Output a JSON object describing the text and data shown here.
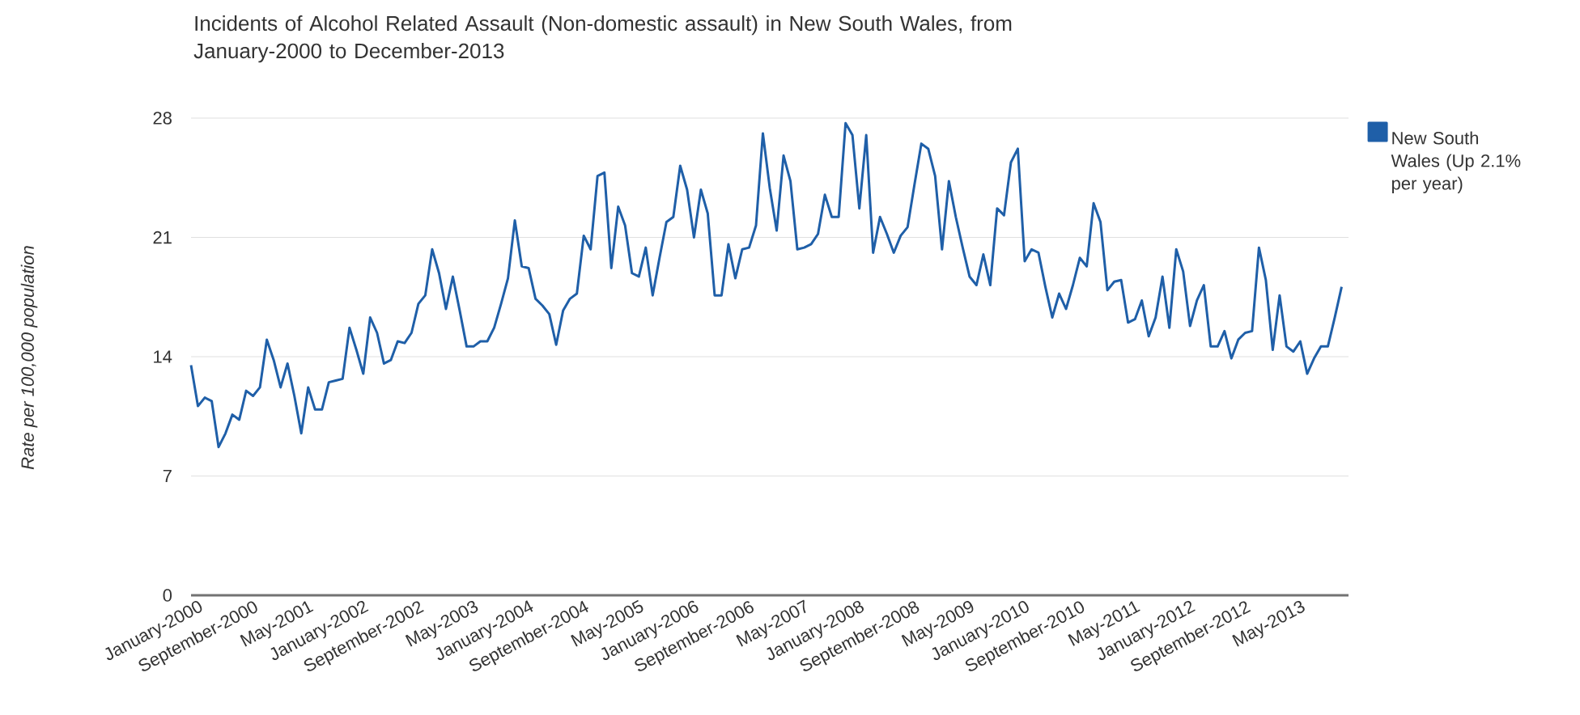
{
  "chart_data": {
    "type": "line",
    "title": "Incidents of Alcohol Related Assault (Non-domestic assault) in New South Wales, from January-2000 to December-2013",
    "ylabel": "Rate per 100,000 population",
    "x": [
      "2000-01",
      "2000-02",
      "2000-03",
      "2000-04",
      "2000-05",
      "2000-06",
      "2000-07",
      "2000-08",
      "2000-09",
      "2000-10",
      "2000-11",
      "2000-12",
      "2001-01",
      "2001-02",
      "2001-03",
      "2001-04",
      "2001-05",
      "2001-06",
      "2001-07",
      "2001-08",
      "2001-09",
      "2001-10",
      "2001-11",
      "2001-12",
      "2002-01",
      "2002-02",
      "2002-03",
      "2002-04",
      "2002-05",
      "2002-06",
      "2002-07",
      "2002-08",
      "2002-09",
      "2002-10",
      "2002-11",
      "2002-12",
      "2003-01",
      "2003-02",
      "2003-03",
      "2003-04",
      "2003-05",
      "2003-06",
      "2003-07",
      "2003-08",
      "2003-09",
      "2003-10",
      "2003-11",
      "2003-12",
      "2004-01",
      "2004-02",
      "2004-03",
      "2004-04",
      "2004-05",
      "2004-06",
      "2004-07",
      "2004-08",
      "2004-09",
      "2004-10",
      "2004-11",
      "2004-12",
      "2005-01",
      "2005-02",
      "2005-03",
      "2005-04",
      "2005-05",
      "2005-06",
      "2005-07",
      "2005-08",
      "2005-09",
      "2005-10",
      "2005-11",
      "2005-12",
      "2006-01",
      "2006-02",
      "2006-03",
      "2006-04",
      "2006-05",
      "2006-06",
      "2006-07",
      "2006-08",
      "2006-09",
      "2006-10",
      "2006-11",
      "2006-12",
      "2007-01",
      "2007-02",
      "2007-03",
      "2007-04",
      "2007-05",
      "2007-06",
      "2007-07",
      "2007-08",
      "2007-09",
      "2007-10",
      "2007-11",
      "2007-12",
      "2008-01",
      "2008-02",
      "2008-03",
      "2008-04",
      "2008-05",
      "2008-06",
      "2008-07",
      "2008-08",
      "2008-09",
      "2008-10",
      "2008-11",
      "2008-12",
      "2009-01",
      "2009-02",
      "2009-03",
      "2009-04",
      "2009-05",
      "2009-06",
      "2009-07",
      "2009-08",
      "2009-09",
      "2009-10",
      "2009-11",
      "2009-12",
      "2010-01",
      "2010-02",
      "2010-03",
      "2010-04",
      "2010-05",
      "2010-06",
      "2010-07",
      "2010-08",
      "2010-09",
      "2010-10",
      "2010-11",
      "2010-12",
      "2011-01",
      "2011-02",
      "2011-03",
      "2011-04",
      "2011-05",
      "2011-06",
      "2011-07",
      "2011-08",
      "2011-09",
      "2011-10",
      "2011-11",
      "2011-12",
      "2012-01",
      "2012-02",
      "2012-03",
      "2012-04",
      "2012-05",
      "2012-06",
      "2012-07",
      "2012-08",
      "2012-09",
      "2012-10",
      "2012-11",
      "2012-12",
      "2013-01",
      "2013-02",
      "2013-03",
      "2013-04",
      "2013-05",
      "2013-06",
      "2013-07",
      "2013-08",
      "2013-09",
      "2013-10",
      "2013-11",
      "2013-12"
    ],
    "series": [
      {
        "name": "New South Wales (Up 2.1% per year)",
        "color": "#1f5fa8",
        "values": [
          13.5,
          11.1,
          11.6,
          11.4,
          8.7,
          9.5,
          10.6,
          10.3,
          12.0,
          11.7,
          12.2,
          15.0,
          13.8,
          12.2,
          13.6,
          11.7,
          9.5,
          12.2,
          10.9,
          10.9,
          12.5,
          12.6,
          12.7,
          15.7,
          14.4,
          13.0,
          16.3,
          15.4,
          13.6,
          13.8,
          14.9,
          14.8,
          15.4,
          17.1,
          17.6,
          20.3,
          18.9,
          16.8,
          18.7,
          16.7,
          14.6,
          14.6,
          14.9,
          14.9,
          15.7,
          17.1,
          18.6,
          22.0,
          19.3,
          19.2,
          17.4,
          17.0,
          16.5,
          14.7,
          16.7,
          17.4,
          17.7,
          21.1,
          20.3,
          24.6,
          24.8,
          19.2,
          22.8,
          21.7,
          18.9,
          18.7,
          20.4,
          17.6,
          19.8,
          21.9,
          22.2,
          25.2,
          23.8,
          21.0,
          23.8,
          22.4,
          17.6,
          17.6,
          20.6,
          18.6,
          20.3,
          20.4,
          21.7,
          27.1,
          23.9,
          21.4,
          25.8,
          24.3,
          20.3,
          20.4,
          20.6,
          21.2,
          23.5,
          22.2,
          22.2,
          27.7,
          27.0,
          22.7,
          27.0,
          20.1,
          22.2,
          21.2,
          20.1,
          21.1,
          21.6,
          24.1,
          26.5,
          26.2,
          24.6,
          20.3,
          24.3,
          22.2,
          20.4,
          18.7,
          18.2,
          20.0,
          18.2,
          22.7,
          22.3,
          25.4,
          26.2,
          19.6,
          20.3,
          20.1,
          18.1,
          16.3,
          17.7,
          16.8,
          18.2,
          19.8,
          19.3,
          23.0,
          21.9,
          17.9,
          18.4,
          18.5,
          16.0,
          16.2,
          17.3,
          15.2,
          16.3,
          18.7,
          15.7,
          20.3,
          19.0,
          15.8,
          17.3,
          18.2,
          14.6,
          14.6,
          15.5,
          13.9,
          15.0,
          15.4,
          15.5,
          20.4,
          18.5,
          14.4,
          17.6,
          14.6,
          14.3,
          14.9,
          13.0,
          13.9,
          14.6,
          14.6,
          16.3,
          18.1
        ]
      }
    ],
    "xlim": [
      "2000-01",
      "2014-01"
    ],
    "xticks": [
      {
        "value": "2000-01",
        "label": "January-2000"
      },
      {
        "value": "2000-09",
        "label": "September-2000"
      },
      {
        "value": "2001-05",
        "label": "May-2001"
      },
      {
        "value": "2002-01",
        "label": "January-2002"
      },
      {
        "value": "2002-09",
        "label": "September-2002"
      },
      {
        "value": "2003-05",
        "label": "May-2003"
      },
      {
        "value": "2004-01",
        "label": "January-2004"
      },
      {
        "value": "2004-09",
        "label": "September-2004"
      },
      {
        "value": "2005-05",
        "label": "May-2005"
      },
      {
        "value": "2006-01",
        "label": "January-2006"
      },
      {
        "value": "2006-09",
        "label": "September-2006"
      },
      {
        "value": "2007-05",
        "label": "May-2007"
      },
      {
        "value": "2008-01",
        "label": "January-2008"
      },
      {
        "value": "2008-09",
        "label": "September-2008"
      },
      {
        "value": "2009-05",
        "label": "May-2009"
      },
      {
        "value": "2010-01",
        "label": "January-2010"
      },
      {
        "value": "2010-09",
        "label": "September-2010"
      },
      {
        "value": "2011-05",
        "label": "May-2011"
      },
      {
        "value": "2012-01",
        "label": "January-2012"
      },
      {
        "value": "2012-09",
        "label": "September-2012"
      },
      {
        "value": "2013-05",
        "label": "May-2013"
      }
    ],
    "ylim": [
      0,
      28
    ],
    "yticks": [
      0,
      7,
      14,
      21,
      28
    ],
    "grid": "y",
    "legend": "top right"
  }
}
